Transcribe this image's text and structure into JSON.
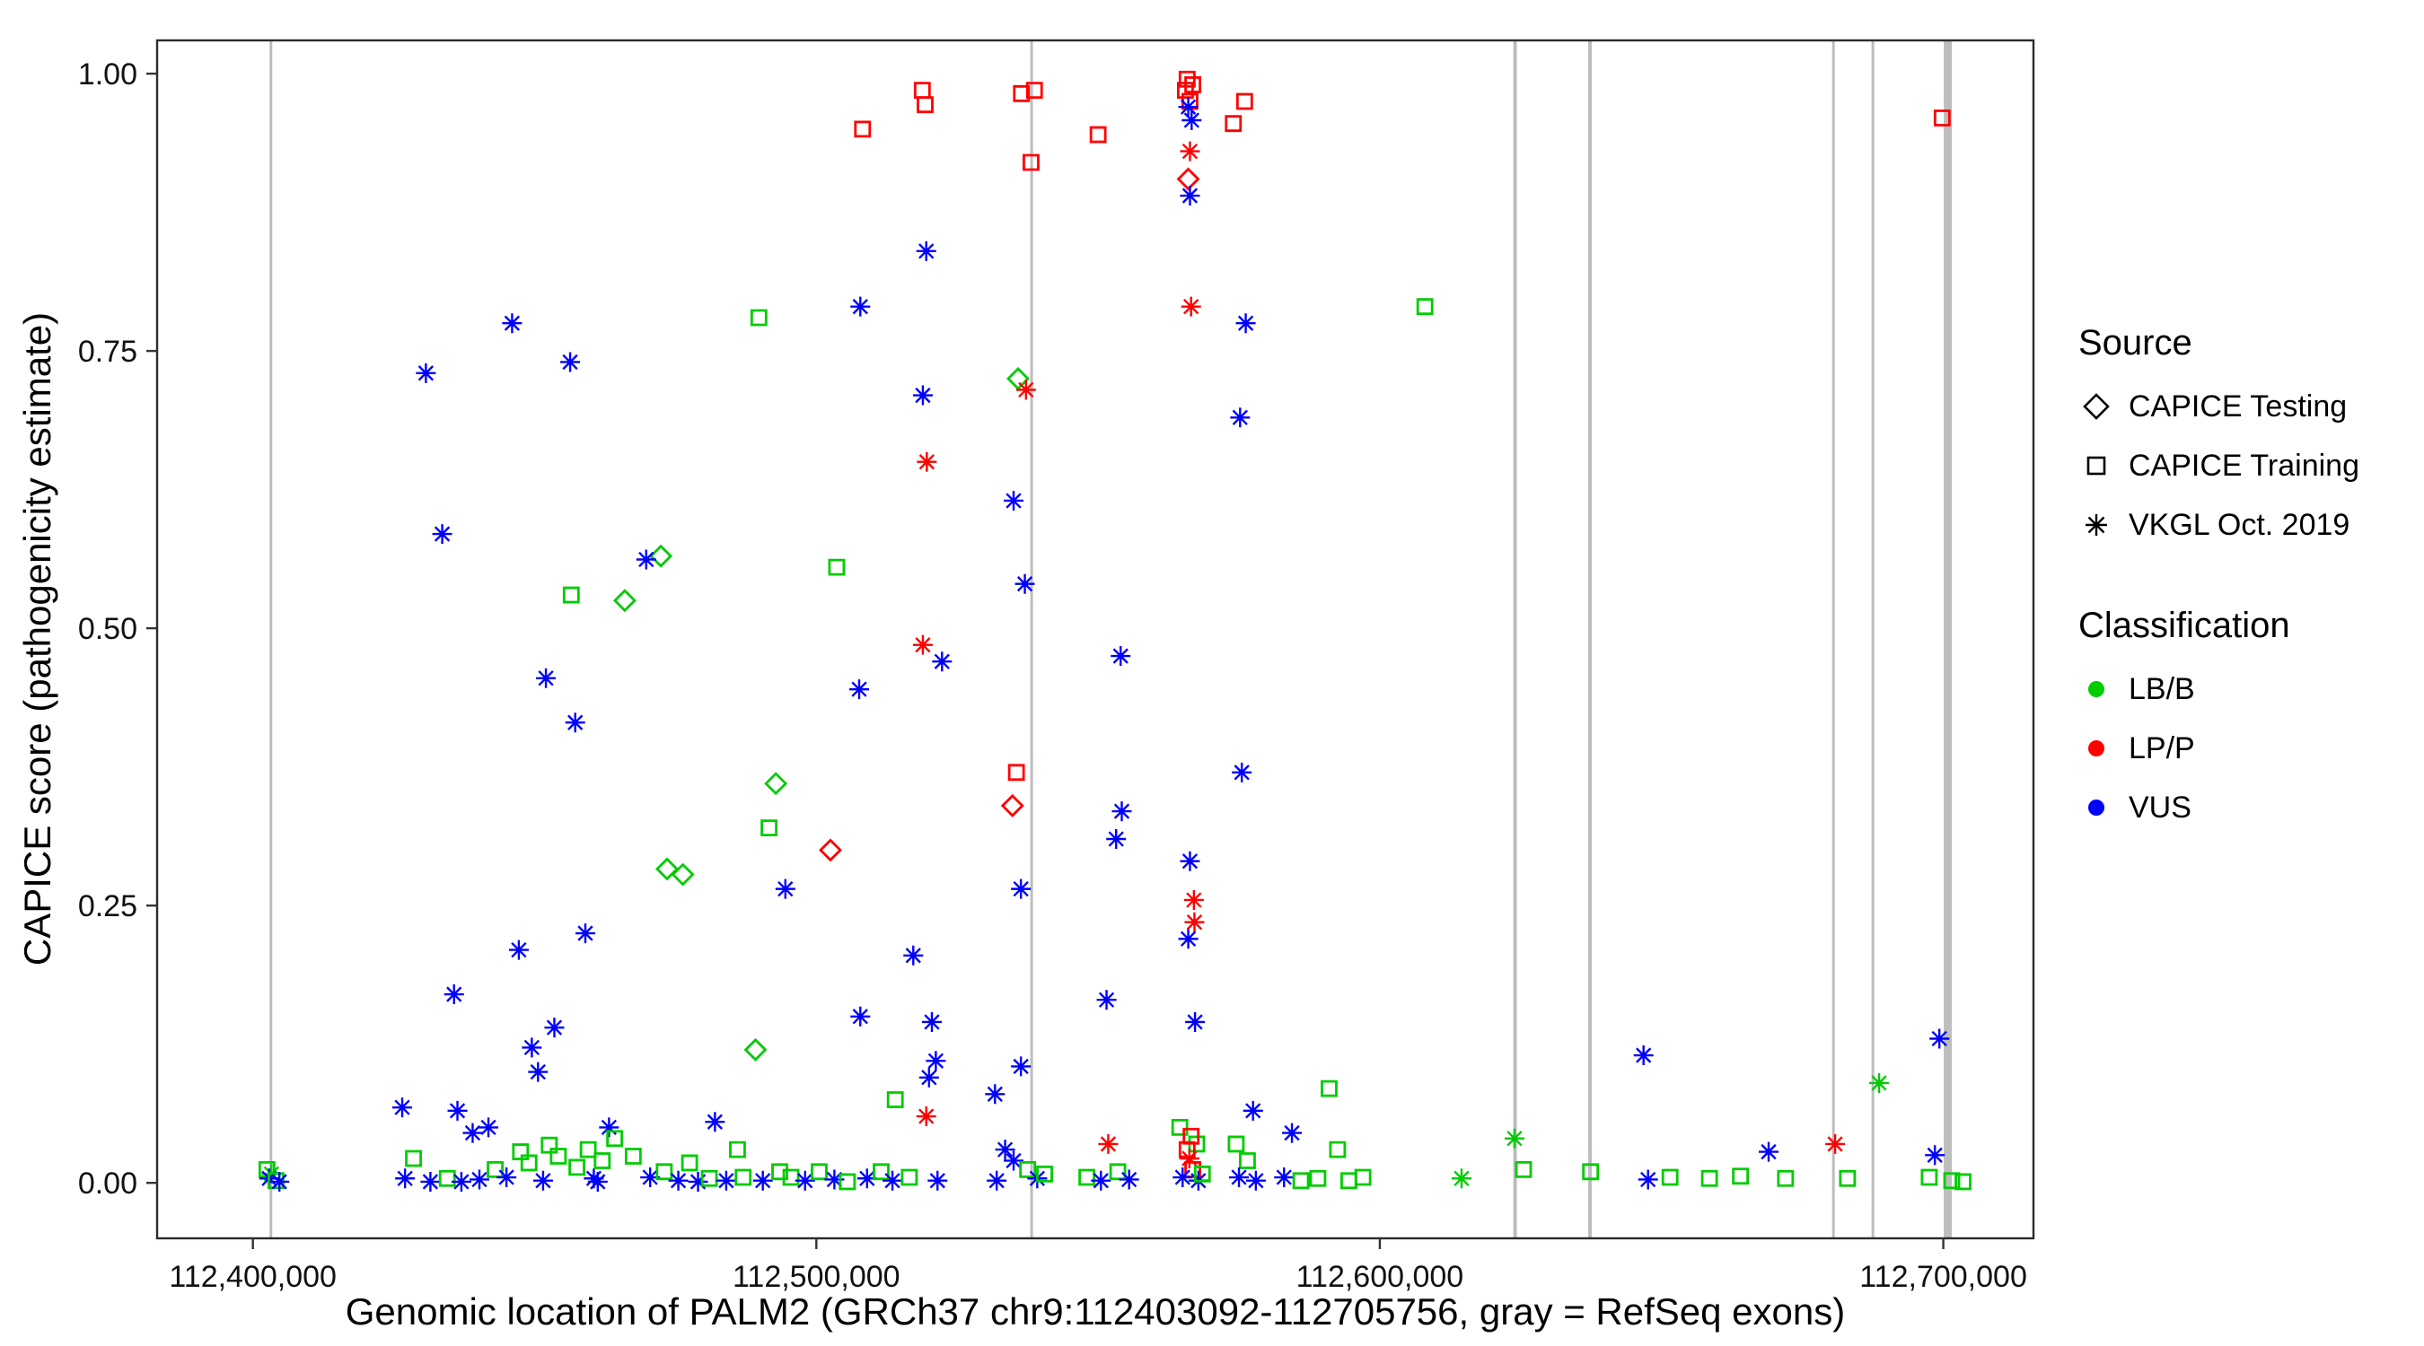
{
  "legend": {
    "source": {
      "title": "Source",
      "items": [
        {
          "label": "CAPICE Testing",
          "shape": "diamond"
        },
        {
          "label": "CAPICE Training",
          "shape": "square"
        },
        {
          "label": "VKGL Oct. 2019",
          "shape": "asterisk"
        }
      ]
    },
    "classification": {
      "title": "Classification",
      "items": [
        {
          "label": "LB/B",
          "color": "#00CC00"
        },
        {
          "label": "LP/P",
          "color": "#FF0000"
        },
        {
          "label": "VUS",
          "color": "#0000FF"
        }
      ]
    }
  },
  "chart_data": {
    "type": "scatter",
    "title": "",
    "xlabel": "Genomic location of PALM2 (GRCh37 chr9:112403092-112705756, gray = RefSeq exons)",
    "ylabel": "CAPICE score (pathogenicity estimate)",
    "xlim": [
      112383000,
      112716000
    ],
    "ylim": [
      -0.05,
      1.03
    ],
    "x_ticks": {
      "values": [
        112400000,
        112500000,
        112600000,
        112700000
      ],
      "labels": [
        "112,400,000",
        "112,500,000",
        "112,600,000",
        "112,700,000"
      ]
    },
    "y_ticks": {
      "values": [
        0,
        0.25,
        0.5,
        0.75,
        1
      ],
      "labels": [
        "0.00",
        "0.25",
        "0.50",
        "0.75",
        "1.00"
      ]
    },
    "grid": false,
    "legend_position": "right",
    "shape_codes": {
      "di": "CAPICE Testing",
      "sq": "CAPICE Training",
      "as": "VKGL Oct. 2019"
    },
    "class_codes": {
      "B": "LB/B",
      "P": "LP/P",
      "V": "VUS"
    },
    "class_colors": {
      "B": "#00CC00",
      "P": "#FF0000",
      "V": "#0000FF"
    },
    "exon_color": "#BDBDBD",
    "exons": [
      {
        "x": 112403200,
        "w": 3
      },
      {
        "x": 112538200,
        "w": 3
      },
      {
        "x": 112624000,
        "w": 4
      },
      {
        "x": 112637300,
        "w": 4
      },
      {
        "x": 112680500,
        "w": 3
      },
      {
        "x": 112687500,
        "w": 3
      },
      {
        "x": 112700800,
        "w": 9
      }
    ],
    "point_format": [
      "x",
      "y",
      "shape",
      "classification"
    ],
    "points": [
      [
        112402500,
        0.012,
        "sq",
        "B"
      ],
      [
        112403300,
        0.008,
        "as",
        "B"
      ],
      [
        112402900,
        0.004,
        "as",
        "V"
      ],
      [
        112404100,
        0.002,
        "sq",
        "B"
      ],
      [
        112404700,
        0.001,
        "as",
        "V"
      ],
      [
        112426500,
        0.068,
        "as",
        "V"
      ],
      [
        112428500,
        0.022,
        "sq",
        "B"
      ],
      [
        112427000,
        0.004,
        "as",
        "V"
      ],
      [
        112430700,
        0.73,
        "as",
        "V"
      ],
      [
        112431500,
        0.001,
        "as",
        "V"
      ],
      [
        112433600,
        0.585,
        "as",
        "V"
      ],
      [
        112435700,
        0.17,
        "as",
        "V"
      ],
      [
        112436300,
        0.065,
        "as",
        "V"
      ],
      [
        112434500,
        0.004,
        "sq",
        "B"
      ],
      [
        112437000,
        0.001,
        "as",
        "V"
      ],
      [
        112439000,
        0.045,
        "as",
        "V"
      ],
      [
        112440200,
        0.003,
        "as",
        "V"
      ],
      [
        112441800,
        0.05,
        "as",
        "V"
      ],
      [
        112443000,
        0.012,
        "sq",
        "B"
      ],
      [
        112446000,
        0.775,
        "as",
        "V"
      ],
      [
        112447200,
        0.21,
        "as",
        "V"
      ],
      [
        112449500,
        0.122,
        "as",
        "V"
      ],
      [
        112450600,
        0.1,
        "as",
        "V"
      ],
      [
        112453500,
        0.14,
        "as",
        "V"
      ],
      [
        112445000,
        0.005,
        "as",
        "V"
      ],
      [
        112447500,
        0.028,
        "sq",
        "B"
      ],
      [
        112449000,
        0.018,
        "sq",
        "B"
      ],
      [
        112451500,
        0.002,
        "as",
        "V"
      ],
      [
        112452600,
        0.034,
        "sq",
        "B"
      ],
      [
        112454200,
        0.024,
        "sq",
        "B"
      ],
      [
        112452000,
        0.455,
        "as",
        "V"
      ],
      [
        112456300,
        0.74,
        "as",
        "V"
      ],
      [
        112457200,
        0.415,
        "as",
        "V"
      ],
      [
        112456500,
        0.53,
        "sq",
        "B"
      ],
      [
        112459000,
        0.225,
        "as",
        "V"
      ],
      [
        112457500,
        0.014,
        "sq",
        "B"
      ],
      [
        112459500,
        0.03,
        "sq",
        "B"
      ],
      [
        112460500,
        0.004,
        "as",
        "V"
      ],
      [
        112462000,
        0.02,
        "sq",
        "B"
      ],
      [
        112463200,
        0.05,
        "as",
        "V"
      ],
      [
        112464200,
        0.04,
        "sq",
        "B"
      ],
      [
        112461200,
        0.001,
        "as",
        "V"
      ],
      [
        112466000,
        0.525,
        "di",
        "B"
      ],
      [
        112472400,
        0.565,
        "di",
        "B"
      ],
      [
        112469800,
        0.562,
        "as",
        "V"
      ],
      [
        112473500,
        0.283,
        "di",
        "B"
      ],
      [
        112476300,
        0.278,
        "di",
        "B"
      ],
      [
        112467500,
        0.024,
        "sq",
        "B"
      ],
      [
        112470500,
        0.005,
        "as",
        "V"
      ],
      [
        112473000,
        0.01,
        "sq",
        "B"
      ],
      [
        112475500,
        0.002,
        "as",
        "V"
      ],
      [
        112477500,
        0.018,
        "sq",
        "B"
      ],
      [
        112479000,
        0.001,
        "as",
        "V"
      ],
      [
        112482000,
        0.055,
        "as",
        "V"
      ],
      [
        112481000,
        0.004,
        "sq",
        "B"
      ],
      [
        112484000,
        0.002,
        "as",
        "V"
      ],
      [
        112486000,
        0.03,
        "sq",
        "B"
      ],
      [
        112487000,
        0.005,
        "sq",
        "B"
      ],
      [
        112489800,
        0.78,
        "sq",
        "B"
      ],
      [
        112489200,
        0.12,
        "di",
        "B"
      ],
      [
        112491600,
        0.32,
        "sq",
        "B"
      ],
      [
        112492800,
        0.36,
        "di",
        "B"
      ],
      [
        112490500,
        0.002,
        "as",
        "V"
      ],
      [
        112493500,
        0.01,
        "sq",
        "B"
      ],
      [
        112494500,
        0.265,
        "as",
        "V"
      ],
      [
        112502500,
        0.3,
        "di",
        "P"
      ],
      [
        112495500,
        0.005,
        "sq",
        "B"
      ],
      [
        112498000,
        0.002,
        "as",
        "V"
      ],
      [
        112500500,
        0.01,
        "sq",
        "B"
      ],
      [
        112503200,
        0.003,
        "as",
        "V"
      ],
      [
        112505500,
        0.001,
        "sq",
        "B"
      ],
      [
        112503600,
        0.555,
        "sq",
        "B"
      ],
      [
        112507800,
        0.79,
        "as",
        "V"
      ],
      [
        112508200,
        0.95,
        "sq",
        "P"
      ],
      [
        112507600,
        0.445,
        "as",
        "V"
      ],
      [
        112507800,
        0.15,
        "as",
        "V"
      ],
      [
        112514000,
        0.075,
        "sq",
        "B"
      ],
      [
        112518800,
        0.985,
        "sq",
        "P"
      ],
      [
        112519300,
        0.972,
        "sq",
        "P"
      ],
      [
        112519500,
        0.84,
        "as",
        "V"
      ],
      [
        112518900,
        0.71,
        "as",
        "V"
      ],
      [
        112519600,
        0.65,
        "as",
        "P"
      ],
      [
        112518900,
        0.485,
        "as",
        "P"
      ],
      [
        112522300,
        0.47,
        "as",
        "V"
      ],
      [
        112517200,
        0.205,
        "as",
        "V"
      ],
      [
        112520500,
        0.145,
        "as",
        "V"
      ],
      [
        112521200,
        0.11,
        "as",
        "V"
      ],
      [
        112520000,
        0.095,
        "as",
        "V"
      ],
      [
        112519500,
        0.06,
        "as",
        "P"
      ],
      [
        112509000,
        0.004,
        "as",
        "V"
      ],
      [
        112511500,
        0.01,
        "sq",
        "B"
      ],
      [
        112513500,
        0.002,
        "as",
        "V"
      ],
      [
        112516500,
        0.005,
        "sq",
        "B"
      ],
      [
        112521500,
        0.002,
        "as",
        "V"
      ],
      [
        112531700,
        0.08,
        "as",
        "V"
      ],
      [
        112536400,
        0.982,
        "sq",
        "P"
      ],
      [
        112538700,
        0.985,
        "sq",
        "P"
      ],
      [
        112538100,
        0.92,
        "sq",
        "P"
      ],
      [
        112535800,
        0.725,
        "di",
        "B"
      ],
      [
        112537200,
        0.715,
        "as",
        "P"
      ],
      [
        112535000,
        0.615,
        "as",
        "V"
      ],
      [
        112537000,
        0.54,
        "as",
        "V"
      ],
      [
        112535500,
        0.37,
        "sq",
        "P"
      ],
      [
        112534800,
        0.34,
        "di",
        "P"
      ],
      [
        112536300,
        0.265,
        "as",
        "V"
      ],
      [
        112536300,
        0.105,
        "as",
        "V"
      ],
      [
        112533500,
        0.03,
        "as",
        "V"
      ],
      [
        112535000,
        0.02,
        "as",
        "V"
      ],
      [
        112537500,
        0.012,
        "sq",
        "B"
      ],
      [
        112539200,
        0.004,
        "as",
        "V"
      ],
      [
        112540500,
        0.008,
        "sq",
        "B"
      ],
      [
        112532000,
        0.002,
        "as",
        "V"
      ],
      [
        112550000,
        0.945,
        "sq",
        "P"
      ],
      [
        112554000,
        0.475,
        "as",
        "V"
      ],
      [
        112554200,
        0.335,
        "as",
        "V"
      ],
      [
        112553200,
        0.31,
        "as",
        "V"
      ],
      [
        112551500,
        0.165,
        "as",
        "V"
      ],
      [
        112551800,
        0.035,
        "as",
        "P"
      ],
      [
        112548000,
        0.005,
        "sq",
        "B"
      ],
      [
        112550500,
        0.002,
        "as",
        "V"
      ],
      [
        112553500,
        0.01,
        "sq",
        "B"
      ],
      [
        112555500,
        0.003,
        "as",
        "V"
      ],
      [
        112565800,
        0.995,
        "sq",
        "P"
      ],
      [
        112566800,
        0.99,
        "sq",
        "P"
      ],
      [
        112565500,
        0.985,
        "sq",
        "P"
      ],
      [
        112566300,
        0.975,
        "sq",
        "P"
      ],
      [
        112566000,
        0.97,
        "as",
        "V"
      ],
      [
        112566600,
        0.958,
        "as",
        "V"
      ],
      [
        112566300,
        0.93,
        "as",
        "P"
      ],
      [
        112566000,
        0.905,
        "di",
        "P"
      ],
      [
        112566300,
        0.89,
        "as",
        "V"
      ],
      [
        112566500,
        0.79,
        "as",
        "P"
      ],
      [
        112566300,
        0.29,
        "as",
        "V"
      ],
      [
        112567000,
        0.255,
        "as",
        "P"
      ],
      [
        112567100,
        0.235,
        "as",
        "P"
      ],
      [
        112566000,
        0.22,
        "as",
        "V"
      ],
      [
        112567200,
        0.145,
        "as",
        "V"
      ],
      [
        112564500,
        0.05,
        "sq",
        "B"
      ],
      [
        112567500,
        0.035,
        "sq",
        "B"
      ],
      [
        112566500,
        0.042,
        "sq",
        "P"
      ],
      [
        112565800,
        0.03,
        "sq",
        "P"
      ],
      [
        112566800,
        0.012,
        "sq",
        "P"
      ],
      [
        112566200,
        0.022,
        "as",
        "P"
      ],
      [
        112565000,
        0.005,
        "as",
        "V"
      ],
      [
        112567800,
        0.002,
        "as",
        "V"
      ],
      [
        112568500,
        0.008,
        "sq",
        "B"
      ],
      [
        112576000,
        0.975,
        "sq",
        "P"
      ],
      [
        112574000,
        0.955,
        "sq",
        "P"
      ],
      [
        112576200,
        0.775,
        "as",
        "V"
      ],
      [
        112575200,
        0.69,
        "as",
        "V"
      ],
      [
        112575500,
        0.37,
        "as",
        "V"
      ],
      [
        112577500,
        0.065,
        "as",
        "V"
      ],
      [
        112574500,
        0.035,
        "sq",
        "B"
      ],
      [
        112576500,
        0.02,
        "sq",
        "B"
      ],
      [
        112575000,
        0.005,
        "as",
        "V"
      ],
      [
        112578000,
        0.002,
        "as",
        "V"
      ],
      [
        112584400,
        0.045,
        "as",
        "V"
      ],
      [
        112583000,
        0.005,
        "as",
        "V"
      ],
      [
        112586000,
        0.002,
        "sq",
        "B"
      ],
      [
        112591000,
        0.085,
        "sq",
        "B"
      ],
      [
        112589000,
        0.004,
        "sq",
        "B"
      ],
      [
        112592500,
        0.03,
        "sq",
        "B"
      ],
      [
        112594500,
        0.002,
        "sq",
        "B"
      ],
      [
        112597000,
        0.005,
        "sq",
        "B"
      ],
      [
        112608000,
        0.79,
        "sq",
        "B"
      ],
      [
        112614500,
        0.004,
        "as",
        "B"
      ],
      [
        112623900,
        0.04,
        "as",
        "B"
      ],
      [
        112625500,
        0.012,
        "sq",
        "B"
      ],
      [
        112637400,
        0.01,
        "sq",
        "B"
      ],
      [
        112646800,
        0.115,
        "as",
        "V"
      ],
      [
        112647600,
        0.003,
        "as",
        "V"
      ],
      [
        112651500,
        0.005,
        "sq",
        "B"
      ],
      [
        112658500,
        0.004,
        "sq",
        "B"
      ],
      [
        112664000,
        0.006,
        "sq",
        "B"
      ],
      [
        112669000,
        0.028,
        "as",
        "V"
      ],
      [
        112672000,
        0.004,
        "sq",
        "B"
      ],
      [
        112680800,
        0.035,
        "as",
        "P"
      ],
      [
        112683000,
        0.004,
        "sq",
        "B"
      ],
      [
        112688600,
        0.09,
        "as",
        "B"
      ],
      [
        112697500,
        0.005,
        "sq",
        "B"
      ],
      [
        112698500,
        0.025,
        "as",
        "V"
      ],
      [
        112699300,
        0.13,
        "as",
        "V"
      ],
      [
        112699800,
        0.96,
        "sq",
        "P"
      ],
      [
        112701500,
        0.002,
        "sq",
        "B"
      ],
      [
        112703500,
        0.001,
        "sq",
        "B"
      ]
    ]
  }
}
